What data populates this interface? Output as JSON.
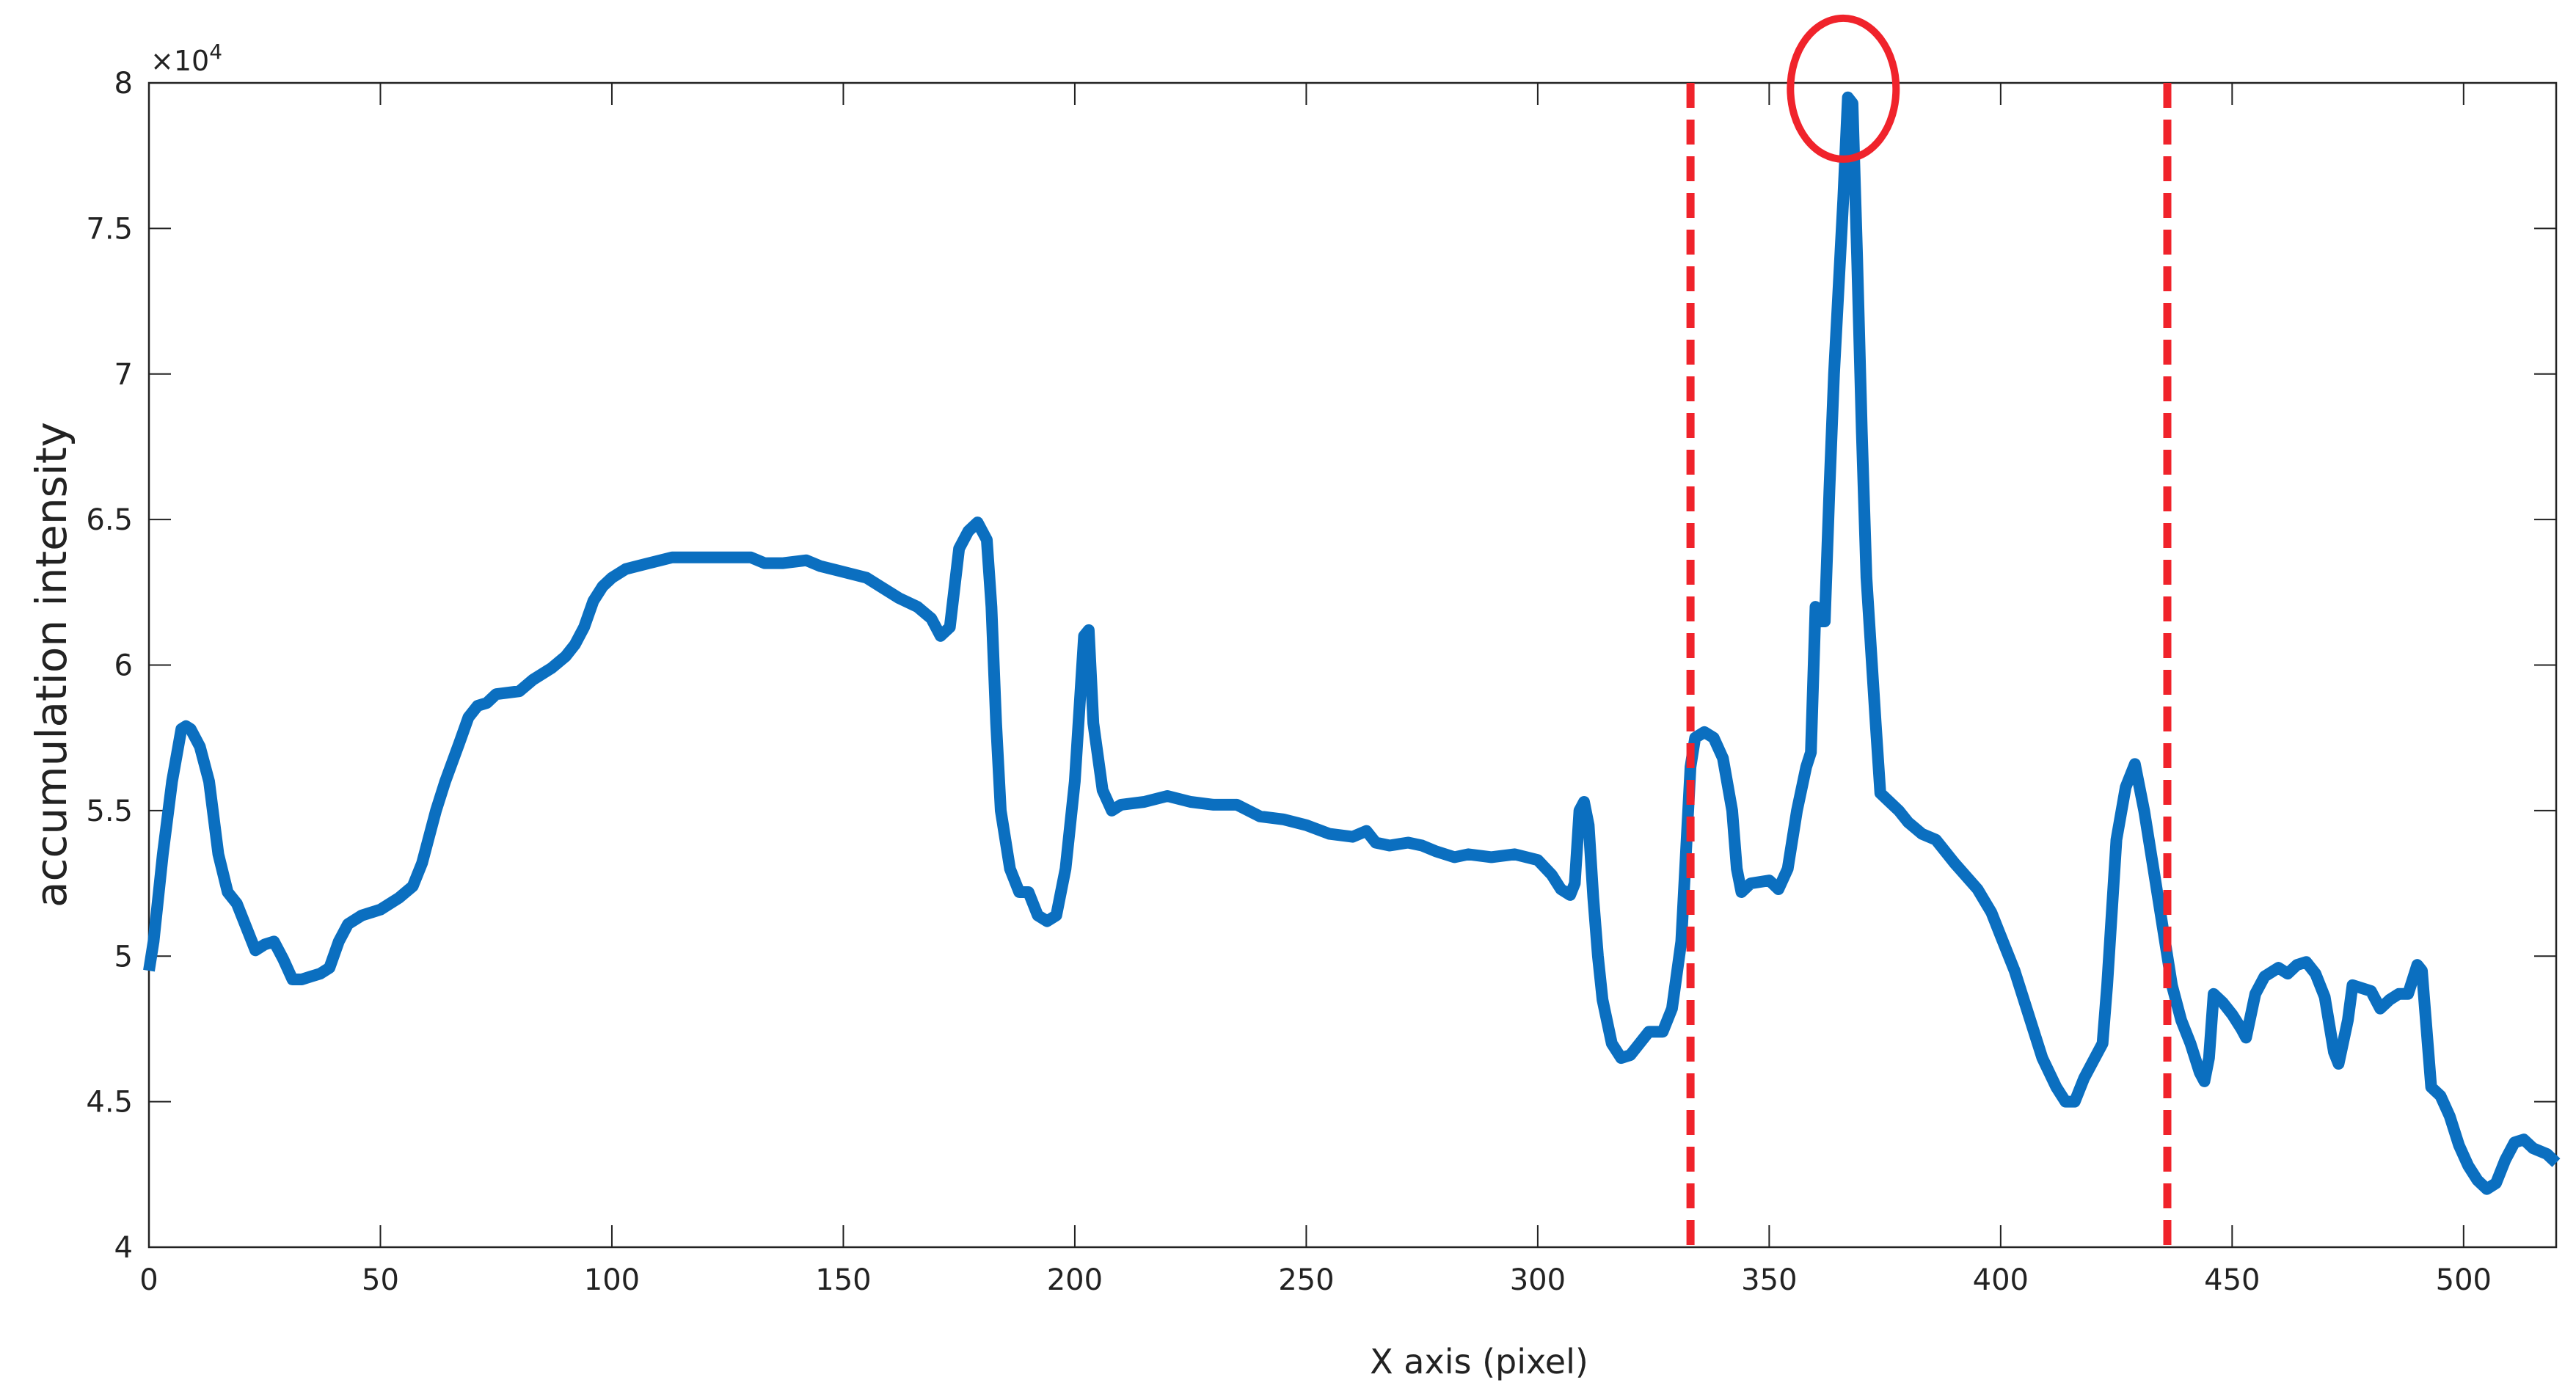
{
  "chart_data": {
    "type": "line",
    "xlabel": "X axis (pixel)",
    "ylabel": "accumulation intensity",
    "y_multiplier": {
      "base": "×10",
      "exponent": "4"
    },
    "color": "#0b6fc0",
    "xlim": [
      0,
      520
    ],
    "ylim": [
      40000,
      80000
    ],
    "xticks": [
      0,
      50,
      100,
      150,
      200,
      250,
      300,
      350,
      400,
      450,
      500
    ],
    "yticks": [
      {
        "value": 40000,
        "label": "4"
      },
      {
        "value": 45000,
        "label": "4.5"
      },
      {
        "value": 50000,
        "label": "5"
      },
      {
        "value": 55000,
        "label": "5.5"
      },
      {
        "value": 60000,
        "label": "6"
      },
      {
        "value": 65000,
        "label": "6.5"
      },
      {
        "value": 70000,
        "label": "7"
      },
      {
        "value": 75000,
        "label": "7.5"
      },
      {
        "value": 80000,
        "label": "8"
      }
    ],
    "vlines": {
      "color": "#f0232b",
      "x": [
        333,
        436
      ]
    },
    "highlight": {
      "color": "#f0232b",
      "x": 366,
      "y": 79800
    },
    "x": [
      0,
      1,
      3,
      5,
      7,
      8,
      9,
      11,
      13,
      15,
      17,
      19,
      21,
      23,
      25,
      27,
      29,
      31,
      33,
      35,
      37,
      39,
      41,
      43,
      46,
      50,
      54,
      57,
      59,
      62,
      64,
      67,
      69,
      71,
      73,
      75,
      80,
      83,
      87,
      90,
      92,
      94,
      96,
      98,
      100,
      103,
      108,
      113,
      118,
      125,
      130,
      133,
      137,
      142,
      145,
      150,
      155,
      158,
      162,
      166,
      169,
      171,
      173,
      175,
      177,
      179,
      181,
      182,
      183,
      184,
      186,
      188,
      190,
      192,
      194,
      196,
      198,
      200,
      201,
      202,
      203,
      204,
      206,
      208,
      210,
      215,
      220,
      225,
      230,
      235,
      240,
      245,
      250,
      255,
      260,
      263,
      265,
      268,
      272,
      275,
      278,
      282,
      285,
      290,
      295,
      300,
      303,
      305,
      307,
      308,
      309,
      310,
      311,
      312,
      313,
      314,
      316,
      318,
      320,
      322,
      324,
      327,
      329,
      331,
      332,
      333,
      334,
      336,
      338,
      340,
      342,
      343,
      344,
      346,
      350,
      352,
      354,
      356,
      358,
      359,
      360,
      361,
      362,
      363,
      364,
      365,
      366,
      367,
      368,
      369,
      370,
      371,
      373,
      374,
      376,
      378,
      380,
      383,
      386,
      390,
      395,
      398,
      400,
      403,
      406,
      409,
      412,
      414,
      416,
      418,
      420,
      422,
      423,
      424,
      425,
      427,
      429,
      431,
      433,
      435,
      437,
      439,
      441,
      443,
      444,
      445,
      446,
      448,
      450,
      452,
      453,
      455,
      457,
      460,
      462,
      464,
      466,
      468,
      470,
      472,
      473,
      475,
      476,
      478,
      480,
      482,
      484,
      486,
      488,
      490,
      491,
      492,
      493,
      495,
      497,
      499,
      501,
      503,
      505,
      507,
      509,
      511,
      513,
      515,
      518,
      520
    ],
    "values": [
      49500,
      50500,
      53500,
      56000,
      57800,
      57900,
      57800,
      57200,
      56000,
      53500,
      52200,
      51800,
      51000,
      50200,
      50400,
      50500,
      49900,
      49200,
      49200,
      49300,
      49400,
      49600,
      50500,
      51100,
      51400,
      51600,
      52000,
      52400,
      53200,
      55000,
      56000,
      57300,
      58200,
      58600,
      58700,
      59000,
      59100,
      59500,
      59900,
      60300,
      60700,
      61300,
      62200,
      62700,
      63000,
      63300,
      63500,
      63700,
      63700,
      63700,
      63700,
      63500,
      63500,
      63600,
      63400,
      63200,
      63000,
      62700,
      62300,
      62000,
      61600,
      61000,
      61300,
      64000,
      64600,
      64900,
      64300,
      62000,
      58000,
      55000,
      53000,
      52200,
      52200,
      51400,
      51200,
      51400,
      53000,
      56000,
      58500,
      61000,
      61200,
      58000,
      55700,
      55000,
      55200,
      55300,
      55500,
      55300,
      55200,
      55200,
      54800,
      54700,
      54500,
      54200,
      54100,
      54300,
      53900,
      53800,
      53900,
      53800,
      53600,
      53400,
      53500,
      53400,
      53500,
      53300,
      52800,
      52300,
      52100,
      52500,
      55000,
      55300,
      54500,
      52000,
      50000,
      48500,
      47000,
      46500,
      46600,
      47000,
      47400,
      47400,
      48200,
      50500,
      53500,
      56500,
      57500,
      57700,
      57500,
      56800,
      55000,
      53000,
      52200,
      52500,
      52600,
      52300,
      53000,
      55000,
      56500,
      57000,
      62000,
      61500,
      61500,
      66000,
      70000,
      73000,
      76000,
      79500,
      79300,
      74000,
      68000,
      63000,
      58000,
      55600,
      55300,
      55000,
      54600,
      54200,
      54000,
      53200,
      52300,
      51500,
      50700,
      49500,
      48000,
      46500,
      45500,
      45000,
      45000,
      45800,
      46400,
      47000,
      49000,
      51500,
      54000,
      55800,
      56600,
      55000,
      53000,
      51000,
      49000,
      47800,
      47000,
      46000,
      45700,
      46500,
      48700,
      48400,
      48000,
      47500,
      47200,
      48700,
      49300,
      49600,
      49400,
      49700,
      49800,
      49400,
      48600,
      46700,
      46300,
      47800,
      49000,
      48900,
      48800,
      48200,
      48500,
      48700,
      48700,
      49700,
      49500,
      47500,
      45500,
      45200,
      44500,
      43500,
      42800,
      42300,
      42000,
      42200,
      43000,
      43600,
      43700,
      43400,
      43200,
      42900
    ]
  }
}
